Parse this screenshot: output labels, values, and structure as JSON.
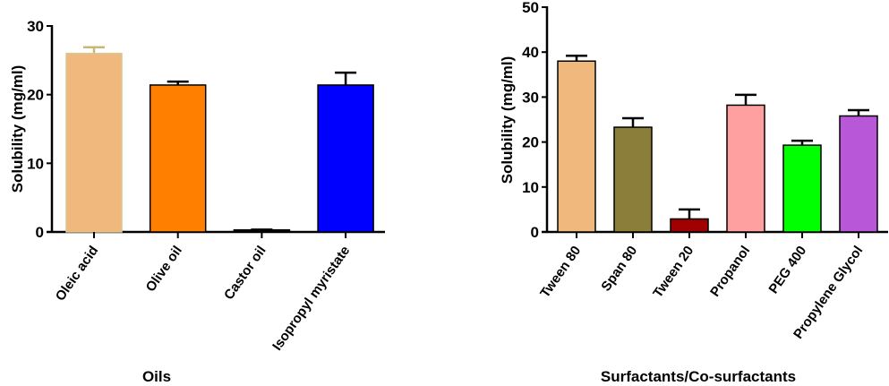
{
  "chart_data": [
    {
      "type": "bar",
      "title": "",
      "xlabel": "Oils",
      "ylabel": "Solubility (mg/ml)",
      "ylim": [
        0,
        30
      ],
      "yticks": [
        0,
        10,
        20,
        30
      ],
      "grid": false,
      "categories": [
        "Oleic acid",
        "Olive oil",
        "Castor oil",
        "Isopropyl myristate"
      ],
      "values": [
        26.0,
        21.4,
        0.3,
        21.4
      ],
      "error_upper": [
        26.9,
        21.9,
        0.35,
        23.2
      ],
      "colors": [
        "#F0B87D",
        "#FF8000",
        "#000000",
        "#0000FF"
      ],
      "error_colors": [
        "#C8B878",
        "#000000",
        "#000000",
        "#000000"
      ]
    },
    {
      "type": "bar",
      "title": "",
      "xlabel": "Surfactants/Co-surfactants",
      "ylabel": "Solubility (mg/ml)",
      "ylim": [
        0,
        50
      ],
      "yticks": [
        0,
        10,
        20,
        30,
        40,
        50
      ],
      "grid": false,
      "categories": [
        "Tween 80",
        "Span 80",
        "Tween 20",
        "Propanol",
        "PEG 400",
        "Propylene Glycol"
      ],
      "values": [
        38.0,
        23.3,
        2.9,
        28.2,
        19.3,
        25.8
      ],
      "error_upper": [
        39.2,
        25.3,
        5.0,
        30.5,
        20.3,
        27.1
      ],
      "colors": [
        "#F0B87D",
        "#8B7D3A",
        "#A00000",
        "#FFA0A0",
        "#00FF00",
        "#B858D8"
      ],
      "error_colors": [
        "#000000",
        "#000000",
        "#000000",
        "#000000",
        "#000000",
        "#000000"
      ]
    }
  ]
}
